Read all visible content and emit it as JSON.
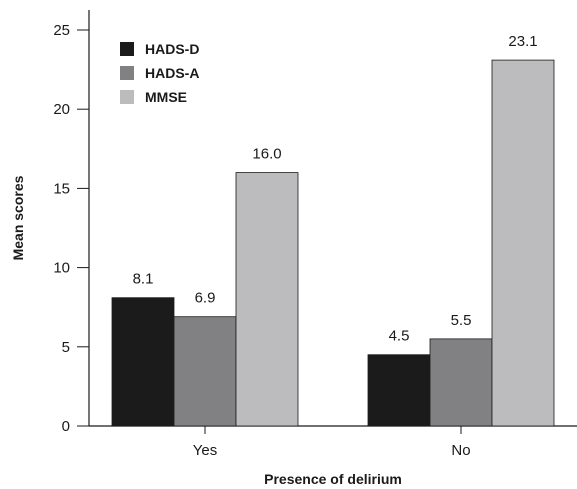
{
  "chart_data": {
    "type": "bar",
    "categories": [
      "Yes",
      "No"
    ],
    "series": [
      {
        "name": "HADS-D",
        "values": [
          8.1,
          4.5
        ],
        "color": "#1c1b1c"
      },
      {
        "name": "HADS-A",
        "values": [
          6.9,
          5.5
        ],
        "color": "#818183"
      },
      {
        "name": "MMSE",
        "values": [
          16.0,
          23.1
        ],
        "color": "#bcbcbe"
      }
    ],
    "data_labels": [
      [
        "8.1",
        "4.5"
      ],
      [
        "6.9",
        "5.5"
      ],
      [
        "16.0",
        "23.1"
      ]
    ],
    "ylim": [
      0,
      25
    ],
    "yticks": [
      0,
      5,
      10,
      15,
      20,
      25
    ],
    "xlabel": "Presence of delirium",
    "ylabel": "Mean scores",
    "legend_position": "top-left",
    "grid": false
  }
}
